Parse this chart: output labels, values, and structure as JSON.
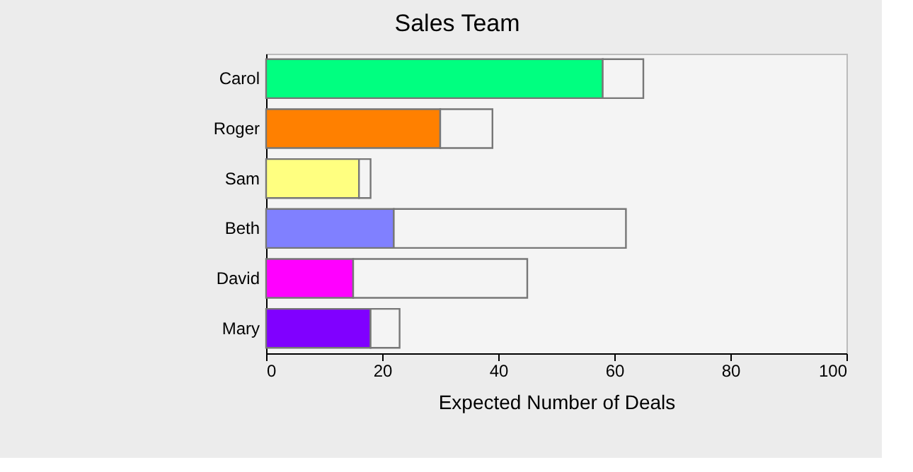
{
  "chart_data": {
    "type": "bar",
    "orientation": "horizontal",
    "stacked": true,
    "title": "Sales Team",
    "xlabel": "Expected Number of Deals",
    "categories": [
      "Carol",
      "Roger",
      "Sam",
      "Beth",
      "David",
      "Mary"
    ],
    "series": [
      {
        "values": [
          58,
          30,
          16,
          22,
          15,
          18
        ],
        "colors": [
          "#00ff80",
          "#ff8000",
          "#ffff80",
          "#8080ff",
          "#ff00ff",
          "#8000ff"
        ]
      },
      {
        "values": [
          7,
          9,
          2,
          40,
          30,
          5
        ],
        "color": "#f4f4f4"
      }
    ],
    "xlim": [
      0,
      100
    ],
    "xticks": [
      0,
      20,
      40,
      60,
      80,
      100
    ],
    "grid": false
  }
}
